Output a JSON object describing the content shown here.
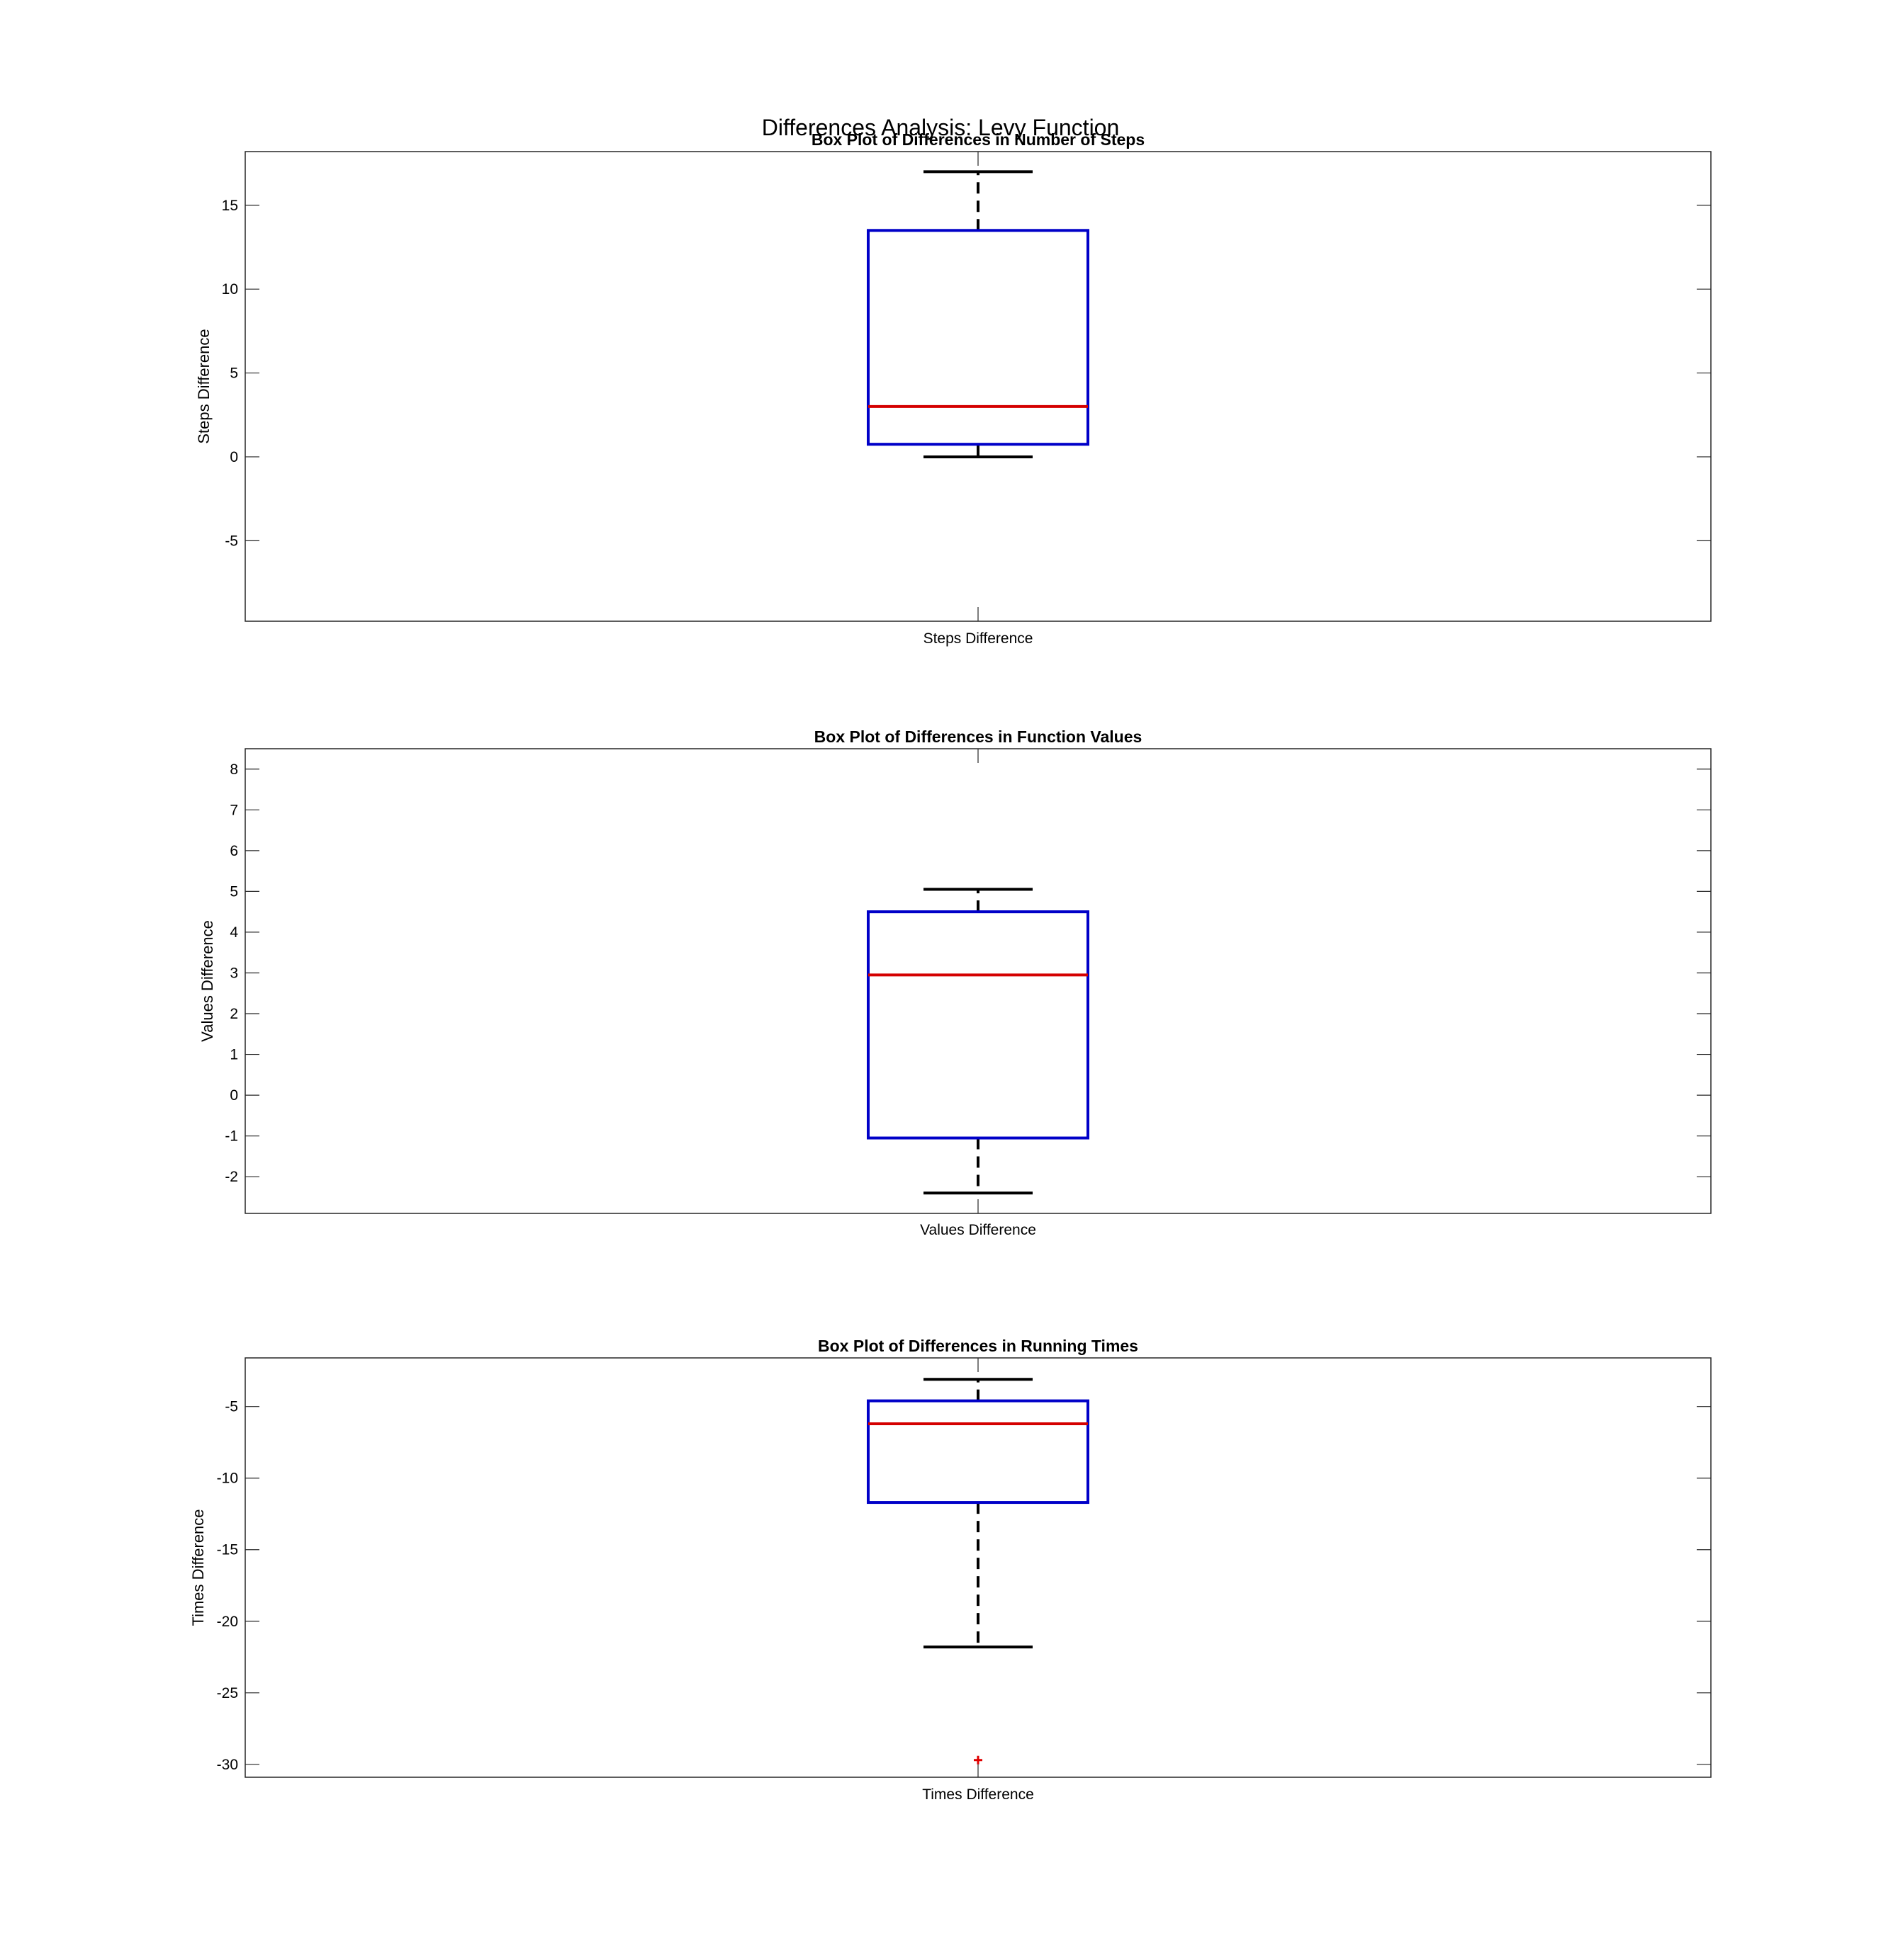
{
  "figure": {
    "title": "Differences Analysis: Levy Function"
  },
  "colors": {
    "box": "#0000c8",
    "median": "#d40000",
    "whisker": "#000000",
    "outlier": "#e00000",
    "axes": "#262626"
  },
  "chart_data": [
    {
      "type": "box",
      "title": "Box Plot of Differences in Number of Steps",
      "xlabel": "",
      "ylabel": "Steps Difference",
      "category": "Steps Difference",
      "ylim": [
        -9.8,
        18.2
      ],
      "yticks": [
        -5,
        0,
        5,
        10,
        15
      ],
      "grid": false,
      "stats": {
        "whisker_low": 0,
        "q1": 0.75,
        "median": 3,
        "q3": 13.5,
        "whisker_high": 17
      },
      "outliers": []
    },
    {
      "type": "box",
      "title": "Box Plot of Differences in Function Values",
      "xlabel": "",
      "ylabel": "Values Difference",
      "category": "Values Difference",
      "ylim": [
        -2.9,
        8.5
      ],
      "yticks": [
        -2,
        -1,
        0,
        1,
        2,
        3,
        4,
        5,
        6,
        7,
        8
      ],
      "grid": false,
      "stats": {
        "whisker_low": -2.4,
        "q1": -1.05,
        "median": 2.95,
        "q3": 4.5,
        "whisker_high": 5.05
      },
      "outliers": []
    },
    {
      "type": "box",
      "title": "Box Plot of Differences in Running Times",
      "xlabel": "",
      "ylabel": "Times Difference",
      "category": "Times Difference",
      "ylim": [
        -30.9,
        -1.6
      ],
      "yticks": [
        -30,
        -25,
        -20,
        -15,
        -10,
        -5
      ],
      "grid": false,
      "stats": {
        "whisker_low": -21.8,
        "q1": -11.7,
        "median": -6.2,
        "q3": -4.6,
        "whisker_high": -3.1
      },
      "outliers": [
        -29.7
      ]
    }
  ]
}
